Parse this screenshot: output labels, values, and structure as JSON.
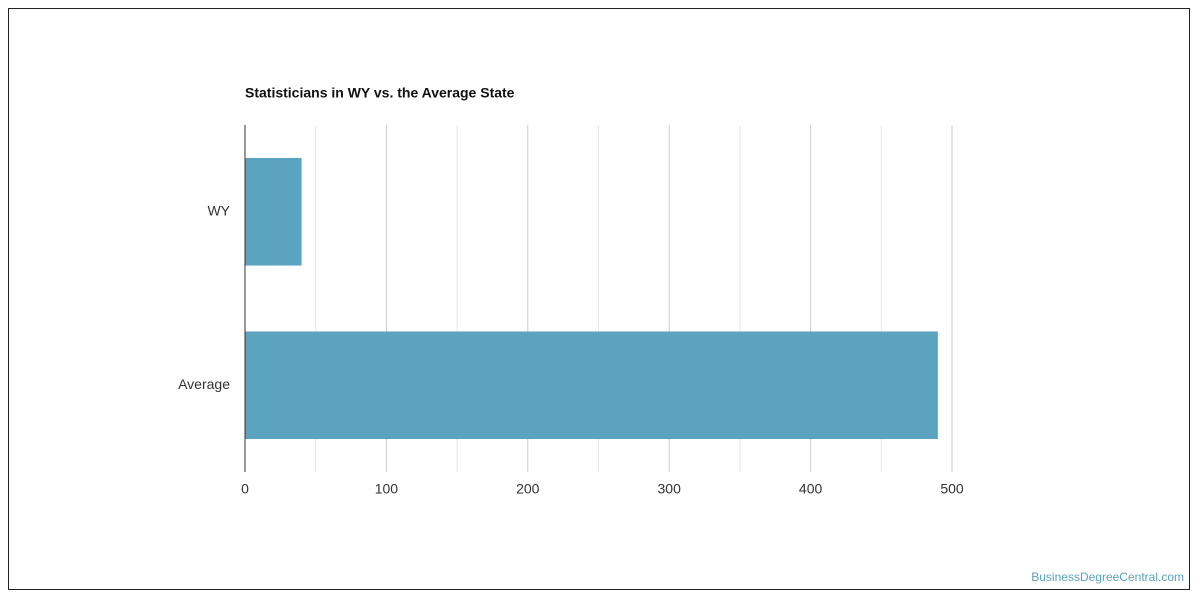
{
  "chart_data": {
    "type": "barh",
    "title": "Statisticians in WY vs. the Average State",
    "categories": [
      "WY",
      "Average"
    ],
    "values": [
      40,
      490
    ],
    "color": "#5ba3be",
    "xlim": [
      0,
      500
    ],
    "xticks": [
      0,
      100,
      200,
      300,
      400,
      500
    ],
    "minor_xticks": [
      50,
      150,
      250,
      350,
      450
    ],
    "grid": true,
    "watermark": "BusinessDegreeCentral.com"
  }
}
